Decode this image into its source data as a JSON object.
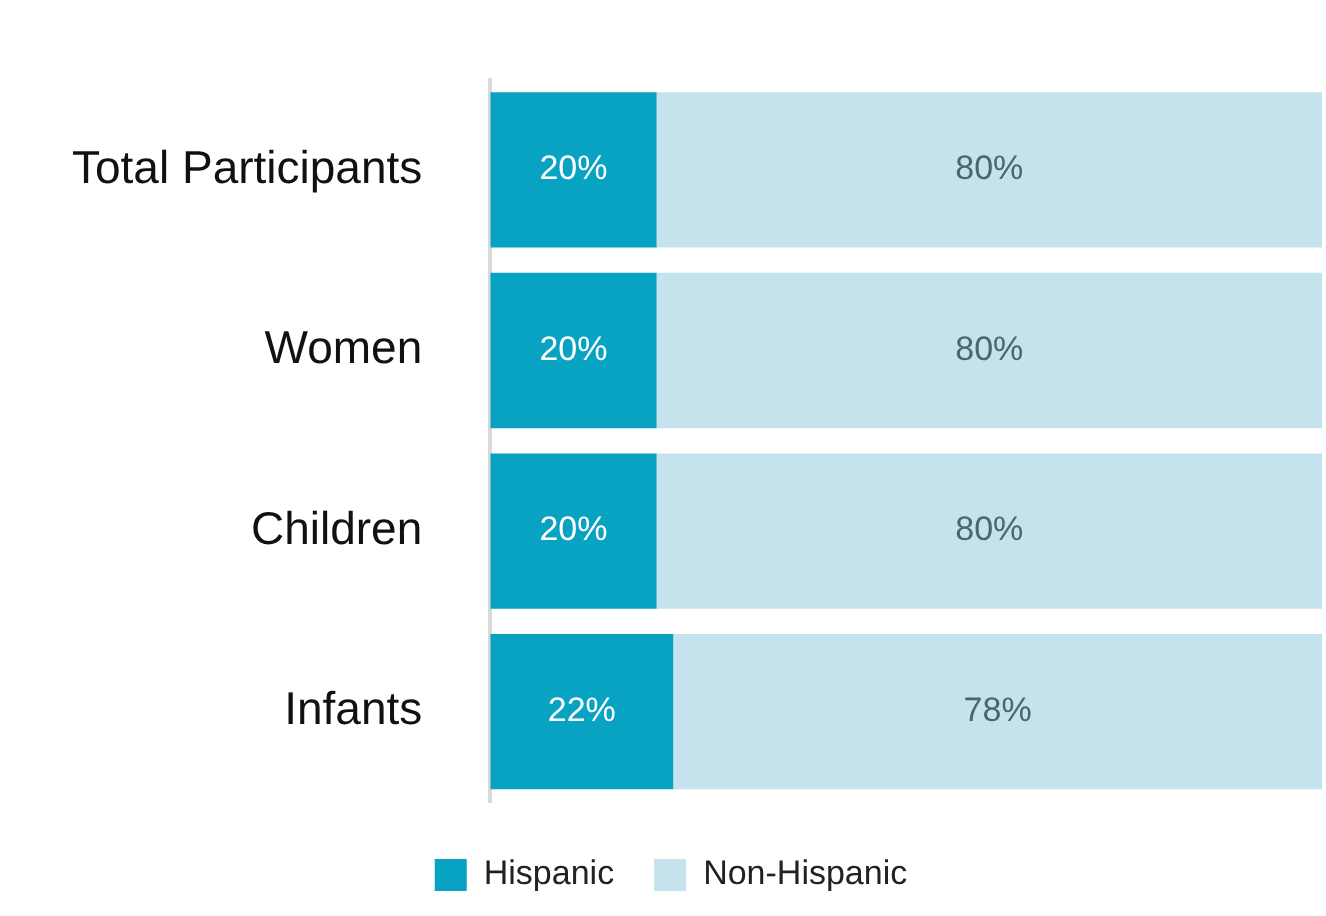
{
  "chart_data": {
    "type": "bar",
    "orientation": "horizontal",
    "stacked": true,
    "categories": [
      "Total Participants",
      "Women",
      "Children",
      "Infants"
    ],
    "xlim": [
      0,
      100
    ],
    "legend": "bottom",
    "grid": false,
    "series": [
      {
        "name": "Hispanic",
        "color": "#08a2c2",
        "values": [
          20,
          20,
          20,
          22
        ],
        "value_labels": [
          "20%",
          "20%",
          "20%",
          "22%"
        ]
      },
      {
        "name": "Non-Hispanic",
        "color": "#c4e3ec",
        "values": [
          80,
          80,
          80,
          78
        ],
        "value_labels": [
          "80%",
          "80%",
          "80%",
          "78%"
        ]
      }
    ]
  }
}
